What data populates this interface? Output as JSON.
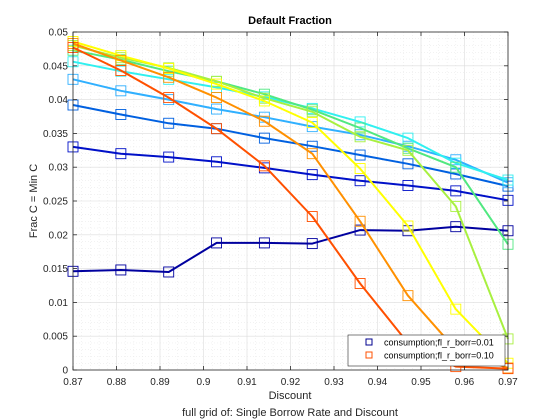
{
  "chart_data": {
    "type": "line",
    "title": "Default Fraction",
    "xlabel": "Discount",
    "ylabel": "Frac C = Min C",
    "caption": "full grid of: Single Borrow Rate and Discount",
    "xlim": [
      0.87,
      0.97
    ],
    "ylim": [
      0,
      0.05
    ],
    "x": [
      0.87,
      0.881,
      0.892,
      0.903,
      0.914,
      0.925,
      0.936,
      0.947,
      0.958,
      0.97
    ],
    "x_ticks": [
      "0.87",
      "0.88",
      "0.89",
      "0.9",
      "0.91",
      "0.92",
      "0.93",
      "0.94",
      "0.95",
      "0.96",
      "0.97"
    ],
    "y_ticks": [
      "0",
      "0.005",
      "0.01",
      "0.015",
      "0.02",
      "0.025",
      "0.03",
      "0.035",
      "0.04",
      "0.045",
      "0.05"
    ],
    "grid": true,
    "minor_grid": true,
    "legend_position": "bottom-right",
    "legend": [
      {
        "label": "consumption;fl_r_borr=0.01",
        "color": "#00008f"
      },
      {
        "label": "consumption;fl_r_borr=0.10",
        "color": "#ff5000"
      }
    ],
    "series": [
      {
        "color": "#00009f",
        "values": [
          0.0146,
          0.0148,
          0.0145,
          0.0188,
          0.0188,
          0.0187,
          0.0207,
          0.0206,
          0.0212,
          0.0206
        ]
      },
      {
        "color": "#0010c8",
        "values": [
          0.033,
          0.032,
          0.0315,
          0.0308,
          0.0299,
          0.0289,
          0.028,
          0.0273,
          0.0265,
          0.0251
        ]
      },
      {
        "color": "#0060e0",
        "values": [
          0.0392,
          0.0378,
          0.0365,
          0.0357,
          0.0343,
          0.0331,
          0.0318,
          0.0305,
          0.029,
          0.0272
        ]
      },
      {
        "color": "#30b0ff",
        "values": [
          0.043,
          0.0413,
          0.04,
          0.0386,
          0.0374,
          0.036,
          0.0348,
          0.0331,
          0.0311,
          0.0277
        ]
      },
      {
        "color": "#30f0f0",
        "values": [
          0.0456,
          0.0442,
          0.043,
          0.0418,
          0.0404,
          0.0387,
          0.0367,
          0.0343,
          0.0306,
          0.0281
        ]
      },
      {
        "color": "#50e880",
        "values": [
          0.0473,
          0.0459,
          0.0442,
          0.0427,
          0.0408,
          0.0385,
          0.0358,
          0.0328,
          0.03,
          0.0186
        ]
      },
      {
        "color": "#a8f040",
        "values": [
          0.048,
          0.0462,
          0.0447,
          0.0427,
          0.0402,
          0.0382,
          0.0345,
          0.0325,
          0.0242,
          0.0046
        ]
      },
      {
        "color": "#ffff00",
        "values": [
          0.0486,
          0.0465,
          0.0446,
          0.0423,
          0.0398,
          0.0366,
          0.0298,
          0.0213,
          0.009,
          0.001
        ]
      },
      {
        "color": "#ff9000",
        "values": [
          0.0483,
          0.0458,
          0.0433,
          0.0403,
          0.0368,
          0.032,
          0.022,
          0.011,
          0.003,
          0.0003
        ]
      },
      {
        "color": "#ff5000",
        "values": [
          0.0477,
          0.0443,
          0.0403,
          0.0357,
          0.0302,
          0.0227,
          0.0128,
          0.004,
          0.0005,
          0.0002
        ]
      }
    ]
  }
}
